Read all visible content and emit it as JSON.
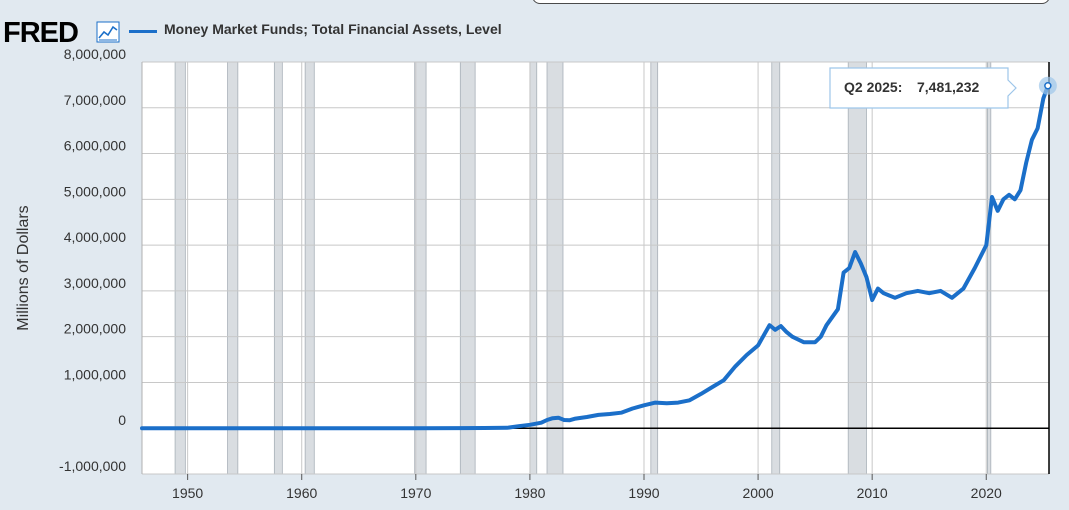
{
  "header": {
    "logo": "FRED",
    "logo_icon": "trend-line-icon",
    "series_title": "Money Market Funds; Total Financial Assets, Level"
  },
  "colors": {
    "series": "#1b6fc9",
    "recession": "#d9dde1",
    "gridline": "#c8c8c8",
    "plot_bg": "#ffffff",
    "page_bg": "#e1e9f0"
  },
  "tooltip": {
    "period": "Q2 2025:",
    "value": "7,481,232"
  },
  "chart_data": {
    "type": "line",
    "title": "Money Market Funds; Total Financial Assets, Level",
    "xlabel": "",
    "ylabel": "Millions of Dollars",
    "xlim": [
      1946,
      2025.5
    ],
    "ylim": [
      -1000000,
      8000000
    ],
    "x_ticks": [
      1950,
      1960,
      1970,
      1980,
      1990,
      2000,
      2010,
      2020
    ],
    "y_ticks": [
      -1000000,
      0,
      1000000,
      2000000,
      3000000,
      4000000,
      5000000,
      6000000,
      7000000,
      8000000
    ],
    "y_tick_labels": [
      "-1,000,000",
      "0",
      "1,000,000",
      "2,000,000",
      "3,000,000",
      "4,000,000",
      "5,000,000",
      "6,000,000",
      "7,000,000",
      "8,000,000"
    ],
    "grid": true,
    "legend": "top-left",
    "recessions": [
      [
        1948.9,
        1949.8
      ],
      [
        1953.5,
        1954.4
      ],
      [
        1957.6,
        1958.3
      ],
      [
        1960.3,
        1961.1
      ],
      [
        1969.9,
        1970.9
      ],
      [
        1973.9,
        1975.2
      ],
      [
        1980.0,
        1980.6
      ],
      [
        1981.5,
        1982.9
      ],
      [
        1990.6,
        1991.2
      ],
      [
        2001.2,
        2001.9
      ],
      [
        2007.9,
        2009.5
      ],
      [
        2020.1,
        2020.4
      ]
    ],
    "series": [
      {
        "name": "Money Market Funds; Total Financial Assets, Level",
        "x": [
          1946,
          1952,
          1960,
          1970,
          1974,
          1976,
          1978,
          1979,
          1980,
          1981,
          1981.5,
          1982,
          1982.5,
          1983,
          1983.5,
          1984,
          1985,
          1986,
          1987,
          1988,
          1989,
          1990,
          1991,
          1992,
          1993,
          1994,
          1995,
          1996,
          1997,
          1998,
          1999,
          2000,
          2001,
          2001.5,
          2002,
          2002.5,
          2003,
          2004,
          2005,
          2005.5,
          2006,
          2007,
          2007.5,
          2008,
          2008.5,
          2009,
          2009.5,
          2010,
          2010.5,
          2011,
          2012,
          2013,
          2014,
          2015,
          2016,
          2017,
          2018,
          2019,
          2020,
          2020.5,
          2021,
          2021.5,
          2022,
          2022.5,
          2023,
          2023.5,
          2024,
          2024.5,
          2025,
          2025.4
        ],
        "values": [
          0,
          0,
          0,
          0,
          2000,
          4000,
          10000,
          45000,
          75000,
          120000,
          180000,
          220000,
          230000,
          180000,
          175000,
          210000,
          245000,
          290000,
          310000,
          340000,
          430000,
          500000,
          560000,
          545000,
          560000,
          610000,
          750000,
          900000,
          1050000,
          1350000,
          1600000,
          1810000,
          2250000,
          2150000,
          2230000,
          2100000,
          2000000,
          1880000,
          1880000,
          2000000,
          2250000,
          2600000,
          3400000,
          3500000,
          3850000,
          3600000,
          3300000,
          2800000,
          3050000,
          2950000,
          2850000,
          2950000,
          3000000,
          2950000,
          3000000,
          2850000,
          3050000,
          3500000,
          4000000,
          5050000,
          4750000,
          5000000,
          5100000,
          5000000,
          5200000,
          5800000,
          6300000,
          6550000,
          7200000,
          7481232
        ]
      }
    ]
  }
}
